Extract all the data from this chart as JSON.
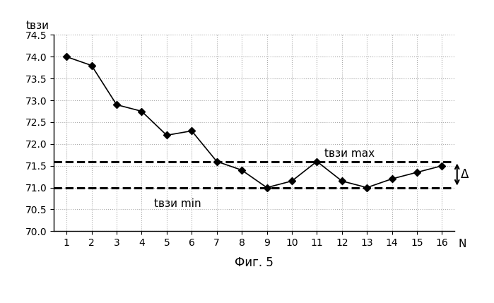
{
  "x": [
    1,
    2,
    3,
    4,
    5,
    6,
    7,
    8,
    9,
    10,
    11,
    12,
    13,
    14,
    15,
    16
  ],
  "y": [
    74.0,
    73.8,
    72.9,
    72.75,
    72.2,
    72.3,
    71.6,
    71.4,
    71.0,
    71.15,
    71.6,
    71.15,
    71.0,
    71.2,
    71.35,
    71.5
  ],
  "y_max_line": 71.6,
  "y_min_line": 71.0,
  "ylim": [
    70.0,
    74.5
  ],
  "xlim": [
    0.5,
    16.5
  ],
  "yticks": [
    70.0,
    70.5,
    71.0,
    71.5,
    72.0,
    72.5,
    73.0,
    73.5,
    74.0,
    74.5
  ],
  "xticks": [
    1,
    2,
    3,
    4,
    5,
    6,
    7,
    8,
    9,
    10,
    11,
    12,
    13,
    14,
    15,
    16
  ],
  "ylabel": "tвзи",
  "xlabel_end": "N",
  "fig_label": "Фиг. 5",
  "label_max": "tвзи max",
  "label_min": "tвзи min",
  "delta_label": "Δ",
  "line_color": "#000000",
  "marker": "D",
  "marker_size": 5,
  "dashed_line_color": "#000000",
  "grid_color": "#aaaaaa",
  "background_color": "#ffffff",
  "label_fontsize": 11,
  "tick_fontsize": 10,
  "annotation_fontsize": 11,
  "delta_fontsize": 12
}
